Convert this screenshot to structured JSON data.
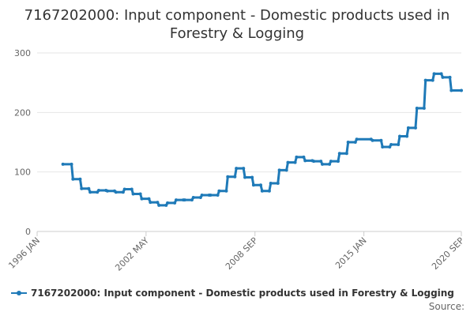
{
  "chart_data": {
    "type": "line",
    "title_line1": "7167202000: Input component - Domestic products used in",
    "title_line2": "Forestry & Logging",
    "xlabel": "",
    "ylabel": "",
    "ylim": [
      0,
      300
    ],
    "yticks": [
      0,
      100,
      200,
      300
    ],
    "xticks": [
      "1996 JAN",
      "2002 MAY",
      "2008 SEP",
      "2015 JAN",
      "2020 SEP"
    ],
    "xlim": [
      "1996-01",
      "2020-09"
    ],
    "grid": "horizontal",
    "legend_position": "bottom",
    "color": "#1f7ab8",
    "series": [
      {
        "name": "7167202000: Input component - Domestic products used in Forestry & Logging",
        "x": [
          "1997-07",
          "1998-01",
          "1998-02",
          "1998-07",
          "1998-08",
          "1999-01",
          "1999-02",
          "1999-07",
          "1999-08",
          "2000-01",
          "2000-02",
          "2000-07",
          "2000-08",
          "2001-01",
          "2001-02",
          "2001-07",
          "2001-08",
          "2002-01",
          "2002-02",
          "2002-07",
          "2002-08",
          "2003-01",
          "2003-02",
          "2003-07",
          "2003-08",
          "2004-01",
          "2004-02",
          "2004-07",
          "2004-08",
          "2005-01",
          "2005-02",
          "2005-07",
          "2005-08",
          "2006-01",
          "2006-02",
          "2006-07",
          "2006-08",
          "2007-01",
          "2007-02",
          "2007-07",
          "2007-08",
          "2008-01",
          "2008-02",
          "2008-07",
          "2008-08",
          "2009-01",
          "2009-02",
          "2009-07",
          "2009-08",
          "2010-01",
          "2010-02",
          "2010-07",
          "2010-08",
          "2011-01",
          "2011-02",
          "2011-07",
          "2011-08",
          "2012-01",
          "2012-02",
          "2012-07",
          "2012-08",
          "2013-01",
          "2013-02",
          "2013-07",
          "2013-08",
          "2014-01",
          "2014-02",
          "2014-07",
          "2014-08",
          "2015-06",
          "2015-07",
          "2016-01",
          "2016-02",
          "2016-07",
          "2016-08",
          "2017-01",
          "2017-02",
          "2017-07",
          "2017-08",
          "2018-01",
          "2018-02",
          "2018-07",
          "2018-08",
          "2019-01",
          "2019-02",
          "2019-07",
          "2019-08",
          "2020-01",
          "2020-02",
          "2020-09"
        ],
        "values": [
          113,
          113,
          88,
          88,
          72,
          72,
          66,
          66,
          69,
          69,
          68,
          68,
          66,
          66,
          71,
          71,
          63,
          63,
          55,
          55,
          49,
          49,
          44,
          44,
          48,
          48,
          53,
          53,
          53,
          53,
          57,
          57,
          61,
          61,
          61,
          61,
          68,
          68,
          92,
          92,
          106,
          106,
          91,
          91,
          78,
          78,
          68,
          68,
          81,
          81,
          103,
          103,
          116,
          116,
          125,
          125,
          119,
          119,
          118,
          118,
          113,
          113,
          118,
          118,
          131,
          131,
          150,
          150,
          155,
          155,
          153,
          153,
          142,
          142,
          146,
          146,
          160,
          160,
          174,
          174,
          207,
          207,
          254,
          254,
          265,
          265,
          259,
          259,
          237,
          237
        ]
      }
    ],
    "source_label": "Source:"
  }
}
